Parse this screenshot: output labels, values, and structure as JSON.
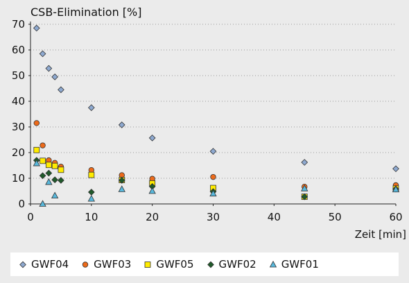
{
  "chart_data": {
    "type": "scatter",
    "title": "CSB-Elimination [%]",
    "xlabel": "Zeit [min]",
    "ylabel": "",
    "xlim": [
      0,
      60
    ],
    "ylim": [
      0,
      70
    ],
    "xticks": [
      0,
      10,
      20,
      30,
      40,
      50,
      60
    ],
    "yticks": [
      0,
      10,
      20,
      30,
      40,
      50,
      60,
      70
    ],
    "grid": "horizontal dotted",
    "legend_position": "bottom",
    "series": [
      {
        "name": "GWF04",
        "marker": "diamond",
        "color": "#8ea9d0",
        "points": [
          [
            1,
            68.5
          ],
          [
            2,
            58.5
          ],
          [
            3,
            52.8
          ],
          [
            4,
            49.5
          ],
          [
            5,
            44.5
          ],
          [
            10,
            37.5
          ],
          [
            15,
            30.8
          ],
          [
            20,
            25.7
          ],
          [
            30,
            20.5
          ],
          [
            45,
            16.2
          ],
          [
            60,
            13.7
          ]
        ]
      },
      {
        "name": "GWF03",
        "marker": "circle",
        "color": "#ec6a1a",
        "points": [
          [
            1,
            31.5
          ],
          [
            2,
            22.8
          ],
          [
            3,
            17.0
          ],
          [
            4,
            16.0
          ],
          [
            5,
            14.5
          ],
          [
            10,
            13.2
          ],
          [
            15,
            11.2
          ],
          [
            20,
            9.8
          ],
          [
            30,
            10.5
          ],
          [
            45,
            6.7
          ],
          [
            60,
            7.3
          ]
        ]
      },
      {
        "name": "GWF05",
        "marker": "square",
        "color": "#ffec00",
        "points": [
          [
            1,
            21.0
          ],
          [
            2,
            16.8
          ],
          [
            3,
            15.2
          ],
          [
            4,
            14.8
          ],
          [
            5,
            13.3
          ],
          [
            10,
            11.3
          ],
          [
            15,
            9.3
          ],
          [
            20,
            8.0
          ],
          [
            30,
            6.2
          ],
          [
            45,
            2.8
          ],
          [
            60,
            6.0
          ]
        ]
      },
      {
        "name": "GWF02",
        "marker": "diamond-dark",
        "color": "#1f5a2a",
        "points": [
          [
            1,
            17.0
          ],
          [
            2,
            11.0
          ],
          [
            3,
            12.0
          ],
          [
            4,
            9.4
          ],
          [
            5,
            9.2
          ],
          [
            10,
            4.6
          ],
          [
            15,
            9.2
          ],
          [
            20,
            6.8
          ],
          [
            30,
            4.8
          ],
          [
            45,
            2.8
          ],
          [
            60,
            5.8
          ]
        ]
      },
      {
        "name": "GWF01",
        "marker": "triangle",
        "color": "#58b8dc",
        "points": [
          [
            1,
            15.8
          ],
          [
            2,
            0.0
          ],
          [
            3,
            8.5
          ],
          [
            4,
            3.2
          ],
          [
            10,
            2.0
          ],
          [
            15,
            5.7
          ],
          [
            20,
            5.0
          ],
          [
            30,
            4.0
          ],
          [
            45,
            6.0
          ],
          [
            60,
            5.6
          ]
        ]
      }
    ]
  }
}
